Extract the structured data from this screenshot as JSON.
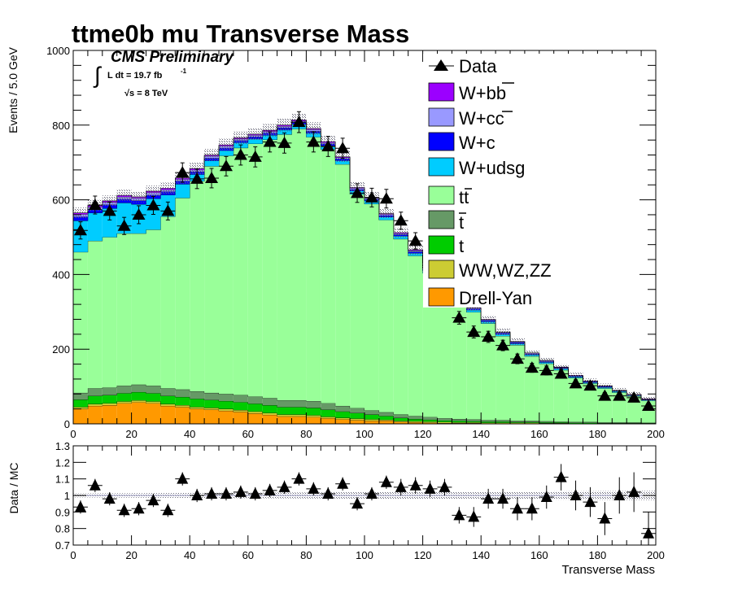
{
  "title": "ttme0b mu Transverse Mass",
  "cms_label": "CMS Preliminary",
  "lumi_text": "L dt = 19.7 fb",
  "lumi_sup": "-1",
  "energy_text": "√s = 8 TeV",
  "integral_symbol": "∫",
  "colors": {
    "wbb": "#9b00ff",
    "wcc": "#9999ff",
    "wc": "#0000ff",
    "wudsg": "#00ccff",
    "ttbar": "#99ff99",
    "tbar": "#669966",
    "t": "#00cc00",
    "diboson": "#cccc33",
    "drellyan": "#ff9900"
  },
  "chart_data": [
    {
      "type": "area",
      "title": "ttme0b mu Transverse Mass",
      "xlabel": "",
      "ylabel": "Events / 5.0 GeV",
      "xlim": [
        0,
        200
      ],
      "ylim": [
        0,
        1000
      ],
      "x_ticks": [
        0,
        20,
        40,
        60,
        80,
        100,
        120,
        140,
        160,
        180,
        200
      ],
      "y_ticks": [
        0,
        200,
        400,
        600,
        800,
        1000
      ],
      "bin_width": 5,
      "x": [
        2.5,
        7.5,
        12.5,
        17.5,
        22.5,
        27.5,
        32.5,
        37.5,
        42.5,
        47.5,
        52.5,
        57.5,
        62.5,
        67.5,
        72.5,
        77.5,
        82.5,
        87.5,
        92.5,
        97.5,
        102.5,
        107.5,
        112.5,
        117.5,
        122.5,
        127.5,
        132.5,
        137.5,
        142.5,
        147.5,
        152.5,
        157.5,
        162.5,
        167.5,
        172.5,
        177.5,
        182.5,
        187.5,
        192.5,
        197.5
      ],
      "legend_position": "top-right",
      "legend": [
        "Data",
        "W+bb̄",
        "W+cc̄",
        "W+c",
        "W+udsg",
        "tt̄",
        "t̄",
        "t",
        "WW,WZ,ZZ",
        "Drell-Yan"
      ],
      "legend_labels": {
        "data": "Data",
        "wbb": "W+bb",
        "wcc": "W+cc",
        "wc": "W+c",
        "wudsg": "W+udsg",
        "tt": "tt",
        "tbar": "t",
        "t": "t",
        "diboson": "WW,WZ,ZZ",
        "dy": "Drell-Yan"
      },
      "series": [
        {
          "name": "Drell-Yan",
          "color": "#ff9900",
          "values": [
            40,
            48,
            50,
            55,
            58,
            55,
            48,
            45,
            40,
            38,
            35,
            32,
            28,
            24,
            20,
            20,
            18,
            15,
            12,
            10,
            8,
            8,
            5,
            4,
            3,
            2,
            2,
            2,
            1,
            1,
            1,
            1,
            1,
            1,
            0,
            0,
            0,
            0,
            0,
            0
          ]
        },
        {
          "name": "WW,WZ,ZZ",
          "color": "#cccc33",
          "values": [
            5,
            5,
            5,
            5,
            5,
            5,
            5,
            5,
            5,
            5,
            5,
            5,
            5,
            5,
            5,
            5,
            5,
            4,
            4,
            4,
            4,
            3,
            3,
            3,
            3,
            3,
            2,
            2,
            2,
            2,
            2,
            2,
            1,
            1,
            1,
            1,
            1,
            1,
            1,
            1
          ]
        },
        {
          "name": "t",
          "color": "#00cc00",
          "values": [
            20,
            22,
            22,
            22,
            22,
            22,
            22,
            22,
            22,
            21,
            21,
            21,
            21,
            21,
            20,
            20,
            20,
            19,
            17,
            15,
            13,
            10,
            8,
            6,
            5,
            4,
            4,
            3,
            3,
            3,
            2,
            2,
            2,
            2,
            2,
            2,
            1,
            1,
            1,
            1
          ]
        },
        {
          "name": "t̄",
          "color": "#669966",
          "values": [
            18,
            20,
            20,
            20,
            20,
            20,
            20,
            20,
            20,
            19,
            19,
            19,
            19,
            19,
            18,
            18,
            18,
            17,
            15,
            13,
            11,
            10,
            9,
            8,
            7,
            6,
            5,
            5,
            4,
            4,
            3,
            3,
            3,
            2,
            2,
            2,
            2,
            2,
            2,
            1
          ]
        },
        {
          "name": "tt̄",
          "color": "#99ff99",
          "values": [
            377,
            395,
            403,
            408,
            405,
            418,
            460,
            513,
            563,
            607,
            638,
            662,
            677,
            692,
            712,
            727,
            707,
            680,
            647,
            573,
            553,
            515,
            470,
            429,
            386,
            355,
            319,
            287,
            259,
            225,
            203,
            173,
            154,
            138,
            118,
            103,
            91,
            80,
            70,
            59
          ]
        },
        {
          "name": "W+udsg",
          "color": "#00ccff",
          "values": [
            84,
            75,
            77,
            82,
            78,
            83,
            58,
            37,
            18,
            15,
            14,
            14,
            13,
            12,
            12,
            12,
            11,
            10,
            10,
            9,
            9,
            8,
            8,
            7,
            7,
            6,
            6,
            6,
            5,
            5,
            4,
            4,
            4,
            4,
            3,
            3,
            3,
            3,
            2,
            2
          ]
        },
        {
          "name": "W+c",
          "color": "#0000ff",
          "values": [
            11,
            10,
            10,
            10,
            10,
            10,
            9,
            8,
            7,
            7,
            7,
            6,
            6,
            6,
            6,
            5,
            5,
            5,
            5,
            4,
            4,
            4,
            4,
            4,
            3,
            3,
            3,
            3,
            3,
            3,
            3,
            2,
            2,
            2,
            2,
            2,
            2,
            1,
            1,
            1
          ]
        },
        {
          "name": "W+cc̄",
          "color": "#9999ff",
          "values": [
            6,
            6,
            6,
            6,
            6,
            6,
            5,
            5,
            5,
            5,
            5,
            4,
            4,
            4,
            4,
            4,
            4,
            3,
            3,
            3,
            3,
            3,
            3,
            3,
            2,
            2,
            2,
            2,
            2,
            2,
            2,
            2,
            2,
            1,
            1,
            1,
            1,
            1,
            1,
            1
          ]
        },
        {
          "name": "W+bb̄",
          "color": "#9b00ff",
          "values": [
            4,
            4,
            4,
            4,
            4,
            4,
            4,
            4,
            4,
            3,
            3,
            3,
            3,
            3,
            3,
            3,
            3,
            3,
            2,
            2,
            2,
            2,
            2,
            2,
            2,
            2,
            2,
            1,
            1,
            1,
            1,
            1,
            1,
            1,
            1,
            1,
            1,
            1,
            1,
            1
          ]
        }
      ],
      "data": {
        "name": "Data",
        "values": [
          518,
          586,
          570,
          530,
          560,
          585,
          570,
          673,
          656,
          658,
          690,
          720,
          715,
          755,
          752,
          808,
          755,
          743,
          738,
          618,
          606,
          603,
          544,
          490,
          475,
          443,
          284,
          246,
          233,
          210,
          174,
          150,
          143,
          134,
          108,
          102,
          75,
          75,
          70,
          48
        ],
        "errors": [
          23,
          24,
          24,
          23,
          24,
          24,
          24,
          26,
          26,
          26,
          26,
          27,
          27,
          27,
          27,
          28,
          27,
          27,
          27,
          25,
          25,
          25,
          23,
          22,
          22,
          21,
          17,
          16,
          15,
          14,
          13,
          12,
          12,
          12,
          10,
          10,
          9,
          9,
          8,
          7
        ]
      }
    },
    {
      "type": "scatter",
      "xlabel": "Transverse Mass",
      "ylabel": "Data / MC",
      "xlim": [
        0,
        200
      ],
      "ylim": [
        0.7,
        1.3
      ],
      "x_ticks": [
        0,
        20,
        40,
        60,
        80,
        100,
        120,
        140,
        160,
        180,
        200
      ],
      "y_ticks": [
        0.7,
        0.8,
        0.9,
        1,
        1.1,
        1.2,
        1.3
      ],
      "y_tick_labels": [
        "0.7",
        "0.8",
        "0.9",
        "1",
        "1.1",
        "1.2",
        "1.3"
      ],
      "x": [
        2.5,
        7.5,
        12.5,
        17.5,
        22.5,
        27.5,
        32.5,
        37.5,
        42.5,
        47.5,
        52.5,
        57.5,
        62.5,
        67.5,
        72.5,
        77.5,
        82.5,
        87.5,
        92.5,
        97.5,
        102.5,
        107.5,
        112.5,
        117.5,
        122.5,
        127.5,
        132.5,
        137.5,
        142.5,
        147.5,
        152.5,
        157.5,
        162.5,
        167.5,
        172.5,
        177.5,
        182.5,
        187.5,
        192.5,
        197.5
      ],
      "values": [
        0.93,
        1.06,
        0.98,
        0.91,
        0.92,
        0.97,
        0.91,
        1.1,
        1.0,
        1.01,
        1.01,
        1.02,
        1.01,
        1.03,
        1.05,
        1.1,
        1.04,
        1.01,
        1.07,
        0.95,
        1.01,
        1.08,
        1.05,
        1.06,
        1.04,
        1.05,
        0.88,
        0.87,
        0.98,
        0.98,
        0.92,
        0.92,
        0.99,
        1.11,
        1.0,
        0.96,
        0.86,
        1.0,
        1.02,
        0.77
      ],
      "errors": [
        0.04,
        0.04,
        0.04,
        0.04,
        0.04,
        0.04,
        0.04,
        0.04,
        0.04,
        0.04,
        0.04,
        0.04,
        0.04,
        0.04,
        0.04,
        0.04,
        0.04,
        0.04,
        0.04,
        0.04,
        0.04,
        0.04,
        0.05,
        0.05,
        0.05,
        0.05,
        0.05,
        0.06,
        0.06,
        0.06,
        0.07,
        0.07,
        0.07,
        0.08,
        0.09,
        0.09,
        0.1,
        0.11,
        0.12,
        0.13
      ]
    }
  ]
}
